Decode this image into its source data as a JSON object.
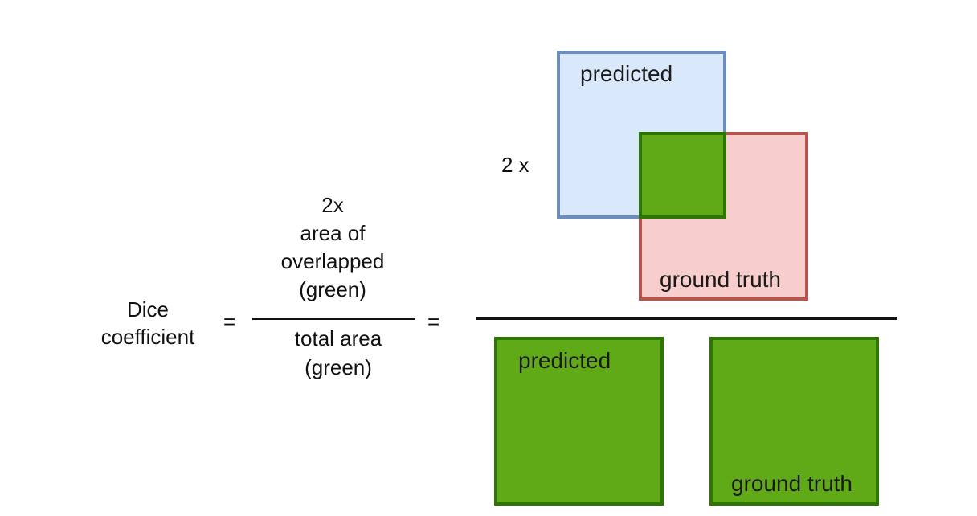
{
  "lhs": {
    "line1": "Dice",
    "line2": "coefficient",
    "equals": "="
  },
  "middle_fraction": {
    "numerator": [
      "2x",
      "area of",
      "overlapped",
      "(green)"
    ],
    "denominator": [
      "total area",
      "(green)"
    ],
    "equals": "="
  },
  "right_fraction": {
    "multiplier": "2 x",
    "top_predicted_label": "predicted",
    "top_ground_truth_label": "ground truth",
    "bottom_predicted_label": "predicted",
    "bottom_ground_truth_label": "ground truth"
  },
  "colors": {
    "predicted_fill": "#dae8fc",
    "predicted_border": "#6c8ebf",
    "ground_truth_fill": "#f8cecc",
    "ground_truth_border": "#b85450",
    "overlap_fill": "#60a917",
    "overlap_border": "#2d7600"
  }
}
